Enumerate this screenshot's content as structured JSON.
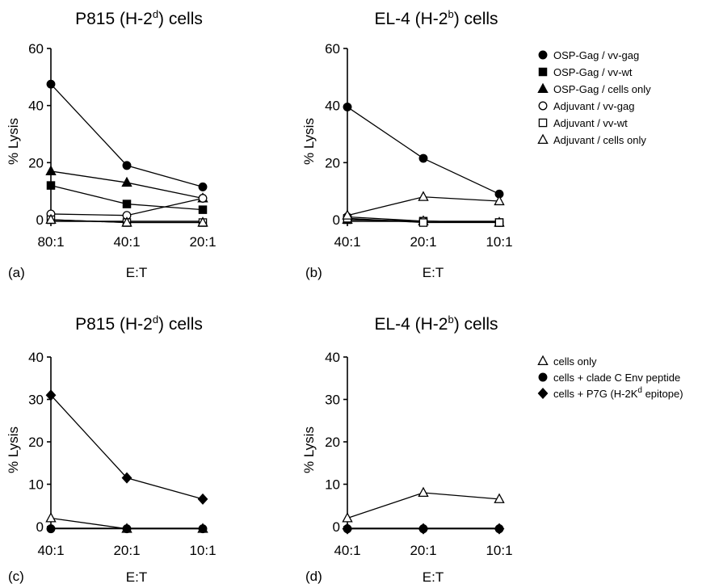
{
  "chart_data": [
    {
      "panel": "(a)",
      "type": "line",
      "title": "P815 (H-2d) cells",
      "title_main": "P815 (H-2",
      "title_sup": "d",
      "title_tail": ") cells",
      "xlabel": "E:T",
      "ylabel": "% Lysis",
      "categories": [
        "80:1",
        "40:1",
        "20:1"
      ],
      "ylim": [
        0,
        60
      ],
      "yticks": [
        0,
        20,
        40,
        60
      ],
      "grid": false,
      "series": [
        {
          "name": "OSP-Gag / vv-gag",
          "marker": "circle-filled",
          "values": [
            47.5,
            19,
            11.5
          ]
        },
        {
          "name": "OSP-Gag / vv-wt",
          "marker": "square-filled",
          "values": [
            12,
            5.5,
            3.5
          ]
        },
        {
          "name": "OSP-Gag / cells only",
          "marker": "triangle-filled",
          "values": [
            17,
            13,
            7.5
          ]
        },
        {
          "name": "Adjuvant / vv-gag",
          "marker": "circle-open",
          "values": [
            2,
            1.5,
            7.5
          ]
        },
        {
          "name": "Adjuvant / vv-wt",
          "marker": "square-open",
          "values": [
            0,
            -1,
            -1
          ]
        },
        {
          "name": "Adjuvant / cells only",
          "marker": "triangle-open",
          "values": [
            0,
            -1,
            -1
          ]
        }
      ]
    },
    {
      "panel": "(b)",
      "type": "line",
      "title": "EL-4 (H-2b) cells",
      "title_main": "EL-4 (H-2",
      "title_sup": "b",
      "title_tail": ") cells",
      "xlabel": "E:T",
      "ylabel": "% Lysis",
      "categories": [
        "40:1",
        "20:1",
        "10:1"
      ],
      "ylim": [
        0,
        60
      ],
      "yticks": [
        0,
        20,
        40,
        60
      ],
      "grid": false,
      "legend_position": "right",
      "series": [
        {
          "name": "OSP-Gag / vv-gag",
          "marker": "circle-filled",
          "values": [
            39.5,
            21.5,
            9
          ]
        },
        {
          "name": "OSP-Gag / vv-wt",
          "marker": "square-filled",
          "values": [
            0,
            -0.5,
            -1
          ]
        },
        {
          "name": "OSP-Gag / cells only",
          "marker": "triangle-filled",
          "values": [
            0,
            -0.5,
            -1
          ]
        },
        {
          "name": "Adjuvant / vv-gag",
          "marker": "circle-open",
          "values": [
            1,
            -0.5,
            -1
          ]
        },
        {
          "name": "Adjuvant / vv-wt",
          "marker": "square-open",
          "values": [
            0.5,
            -1,
            -1
          ]
        },
        {
          "name": "Adjuvant / cells only",
          "marker": "triangle-open",
          "values": [
            1.5,
            8,
            6.5
          ]
        }
      ]
    },
    {
      "panel": "(c)",
      "type": "line",
      "title": "P815 (H-2d) cells",
      "title_main": "P815 (H-2",
      "title_sup": "d",
      "title_tail": ") cells",
      "xlabel": "E:T",
      "ylabel": "% Lysis",
      "categories": [
        "40:1",
        "20:1",
        "10:1"
      ],
      "ylim": [
        0,
        40
      ],
      "yticks": [
        0,
        10,
        20,
        30,
        40
      ],
      "grid": false,
      "series": [
        {
          "name": "cells only",
          "marker": "triangle-open",
          "values": [
            2,
            -0.5,
            -0.5
          ]
        },
        {
          "name": "cells + clade C Env peptide",
          "marker": "circle-filled",
          "values": [
            -0.5,
            -0.5,
            -0.5
          ]
        },
        {
          "name": "cells + P7G (H-2Kd epitope)",
          "marker": "diamond-filled",
          "values": [
            31,
            11.5,
            6.5
          ]
        }
      ]
    },
    {
      "panel": "(d)",
      "type": "line",
      "title": "EL-4 (H-2b) cells",
      "title_main": "EL-4 (H-2",
      "title_sup": "b",
      "title_tail": ") cells",
      "xlabel": "E:T",
      "ylabel": "% Lysis",
      "categories": [
        "40:1",
        "20:1",
        "10:1"
      ],
      "ylim": [
        0,
        40
      ],
      "yticks": [
        0,
        10,
        20,
        30,
        40
      ],
      "grid": false,
      "legend_position": "right",
      "series": [
        {
          "name": "cells only",
          "marker": "triangle-open",
          "values": [
            2,
            8,
            6.5
          ]
        },
        {
          "name": "cells + clade C Env peptide",
          "marker": "circle-filled",
          "values": [
            -0.5,
            -0.5,
            -0.5
          ]
        },
        {
          "name": "cells + P7G (H-2Kd epitope)",
          "marker": "diamond-filled",
          "values": [
            -0.5,
            -0.5,
            -0.5
          ]
        }
      ]
    }
  ],
  "legend_top": [
    {
      "marker": "circle-filled",
      "label": "OSP-Gag / vv-gag"
    },
    {
      "marker": "square-filled",
      "label": "OSP-Gag / vv-wt"
    },
    {
      "marker": "triangle-filled",
      "label": "OSP-Gag / cells only"
    },
    {
      "marker": "circle-open",
      "label": "Adjuvant / vv-gag"
    },
    {
      "marker": "square-open",
      "label": "Adjuvant / vv-wt"
    },
    {
      "marker": "triangle-open",
      "label": "Adjuvant / cells only"
    }
  ],
  "legend_bottom": [
    {
      "marker": "triangle-open",
      "label": "cells only"
    },
    {
      "marker": "circle-filled",
      "label": "cells + clade C Env peptide"
    },
    {
      "marker": "diamond-filled",
      "label": "cells + P7G (H-2K",
      "sup": "d",
      "tail": " epitope)"
    }
  ]
}
